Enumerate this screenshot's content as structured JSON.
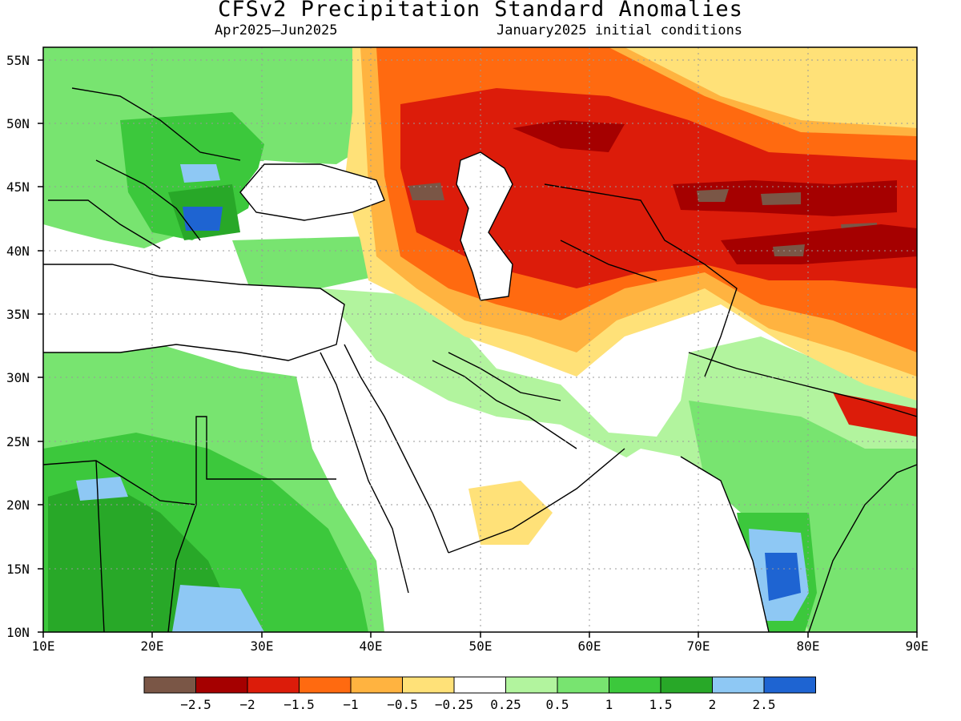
{
  "header": {
    "title": "CFSv2 Precipitation Standard Anomalies",
    "period": "Apr2025–Jun2025",
    "init": "January2025 initial conditions"
  },
  "map": {
    "lon_range": [
      10,
      90
    ],
    "lat_range": [
      10,
      56
    ],
    "lat_labels": [
      "10N",
      "15N",
      "20N",
      "25N",
      "30N",
      "35N",
      "40N",
      "45N",
      "50N",
      "55N"
    ],
    "lon_labels": [
      "10E",
      "20E",
      "30E",
      "40E",
      "50E",
      "60E",
      "70E",
      "80E",
      "90E"
    ],
    "gridlines": "dotted"
  },
  "legend": {
    "colors": [
      "#7a5646",
      "#a50000",
      "#dc1c0a",
      "#ff6a10",
      "#ffb340",
      "#ffe178",
      "#ffffff",
      "#b2f49e",
      "#78e470",
      "#3cc83c",
      "#28a828",
      "#8ec8f4",
      "#1e64d2"
    ],
    "labels": [
      "−2.5",
      "−2",
      "−1.5",
      "−1",
      "−0.5",
      "−0.25",
      "0.25",
      "0.5",
      "1",
      "1.5",
      "2",
      "2.5"
    ]
  }
}
